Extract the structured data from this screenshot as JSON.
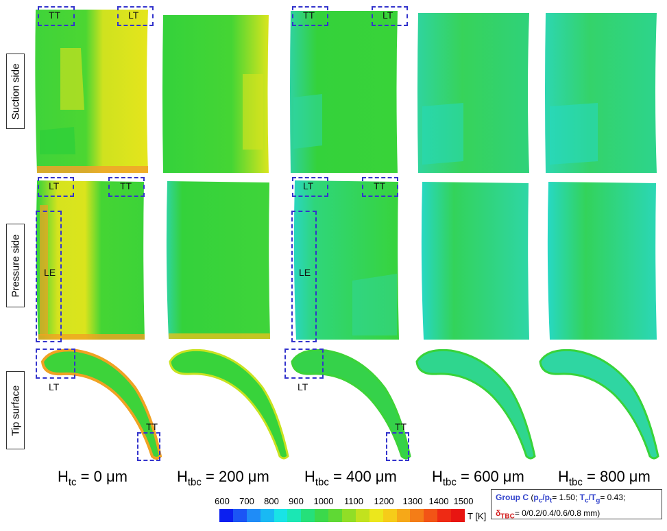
{
  "row_labels": {
    "suction": "Suction side",
    "pressure": "Pressure side",
    "tip": "Tip surface"
  },
  "annotations": {
    "tt": "TT",
    "lt": "LT",
    "le": "LE"
  },
  "columns": [
    {
      "h_main": "H",
      "h_sub": "tc",
      "value": " = 0 μm"
    },
    {
      "h_main": "H",
      "h_sub": "tbc",
      "value": " = 200 μm"
    },
    {
      "h_main": "H",
      "h_sub": "tbc",
      "value": " = 400 μm"
    },
    {
      "h_main": "H",
      "h_sub": "tbc",
      "value": " = 600 μm"
    },
    {
      "h_main": "H",
      "h_sub": "tbc",
      "value": " = 800 μm"
    }
  ],
  "colorbar": {
    "ticks": [
      "600",
      "700",
      "800",
      "900",
      "1000",
      "1100",
      "1200",
      "1300",
      "1400",
      "1500"
    ],
    "unit": "T [K]",
    "colors": [
      "#0b1ff0",
      "#1b55f5",
      "#1f8cf7",
      "#19b9f3",
      "#19e3e6",
      "#1be7b4",
      "#25e07a",
      "#3bd94b",
      "#5fd934",
      "#91de26",
      "#c2e21e",
      "#ece71c",
      "#f6cc19",
      "#f6a818",
      "#f47d17",
      "#f25416",
      "#ee2a14",
      "#e81512"
    ]
  },
  "legend": {
    "group": "Group C",
    "open": " (",
    "pc": "p",
    "pc_sub": "c",
    "slash1": "/p",
    "pt_sub": "t",
    "pratio": "= 1.50; ",
    "tc": "T",
    "tc_sub": "c",
    "slash2": "/T",
    "tg_sub": "g",
    "tratio": "= 0.43;",
    "delta": "δ",
    "delta_sub": "TBC",
    "delta_vals": "= 0/0.2/0.4/0.6/0.8 mm)"
  },
  "palette": {
    "green": "#2fd23a",
    "yellow": "#d8e41c",
    "cyan": "#25dca2",
    "orange": "#f0a222"
  }
}
